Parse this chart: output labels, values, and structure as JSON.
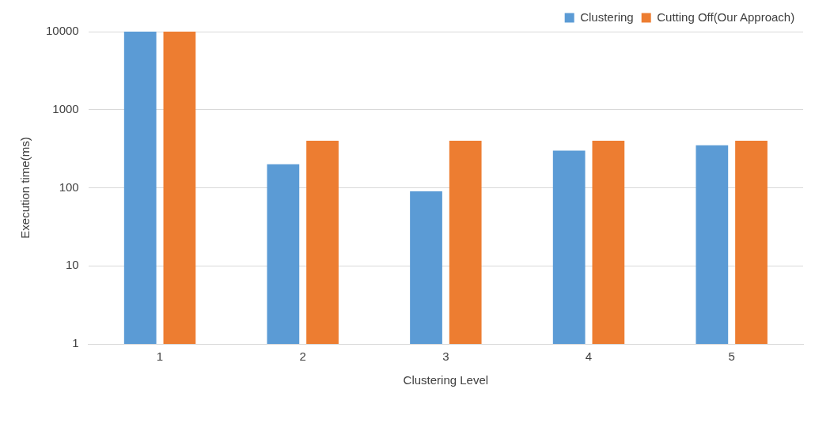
{
  "chart_data": {
    "type": "bar",
    "xlabel": "Clustering Level",
    "ylabel": "Execution time(ms)",
    "categories": [
      "1",
      "2",
      "3",
      "4",
      "5"
    ],
    "series": [
      {
        "name": "Clustering",
        "color": "#5b9bd5",
        "values": [
          10000,
          200,
          90,
          300,
          350
        ]
      },
      {
        "name": "Cutting Off(Our Approach)",
        "color": "#ed7d31",
        "values": [
          10000,
          400,
          400,
          400,
          400
        ]
      }
    ],
    "log": "y",
    "ylim": [
      1,
      10000
    ],
    "yticks": [
      1,
      10,
      100,
      1000,
      10000
    ],
    "grid": "y",
    "legend": "top right"
  }
}
